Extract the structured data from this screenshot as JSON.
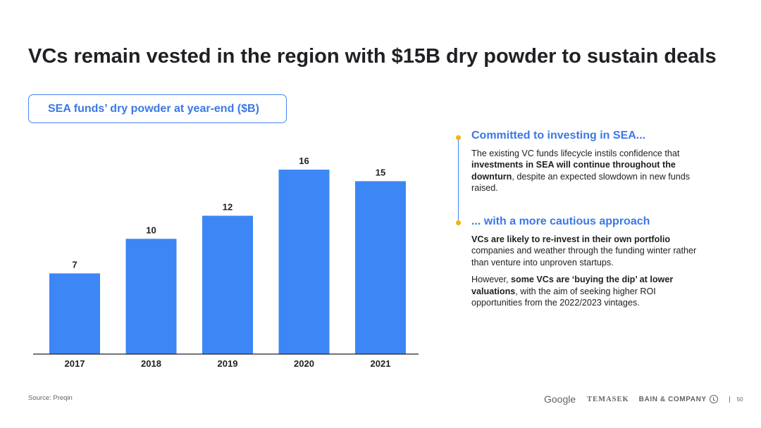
{
  "title": "VCs remain vested in the region with $15B dry powder to sustain deals",
  "chart_data": {
    "type": "bar",
    "title": "SEA funds’ dry powder at year-end ($B)",
    "categories": [
      "2017",
      "2018",
      "2019",
      "2020",
      "2021"
    ],
    "values": [
      7,
      10,
      12,
      16,
      15
    ],
    "data_labels": [
      "7",
      "10",
      "12",
      "16",
      "15"
    ],
    "xlabel": "",
    "ylabel": "",
    "ylim": [
      0,
      16
    ],
    "grid": false,
    "bar_color": "#3d86f5"
  },
  "sections": [
    {
      "heading": "Committed to investing in SEA...",
      "paragraphs": [
        [
          {
            "t": "The existing VC funds lifecycle instils confidence that "
          },
          {
            "t": "investments in SEA will continue throughout the downturn",
            "b": true
          },
          {
            "t": ", despite an expected slowdown in new funds raised."
          }
        ]
      ]
    },
    {
      "heading": "... with a more cautious approach",
      "paragraphs": [
        [
          {
            "t": "VCs are likely to re-invest in their own portfolio",
            "b": true
          },
          {
            "t": " companies and weather through the funding winter rather than venture into unproven startups."
          }
        ],
        [
          {
            "t": "However, "
          },
          {
            "t": "some VCs are ‘buying the dip’ at lower valuations",
            "b": true
          },
          {
            "t": ", with the aim of seeking higher ROI opportunities from the 2022/2023 vintages."
          }
        ]
      ]
    }
  ],
  "footer": {
    "source": "Source: Preqin",
    "logos": {
      "google": "Google",
      "temasek": "TEMASEK",
      "bain": "BAIN & COMPANY"
    },
    "page_number": "50"
  },
  "colors": {
    "accent_blue": "#3d86f5",
    "heading_blue": "#3b78e7",
    "timeline_dot": "#f4b400"
  }
}
